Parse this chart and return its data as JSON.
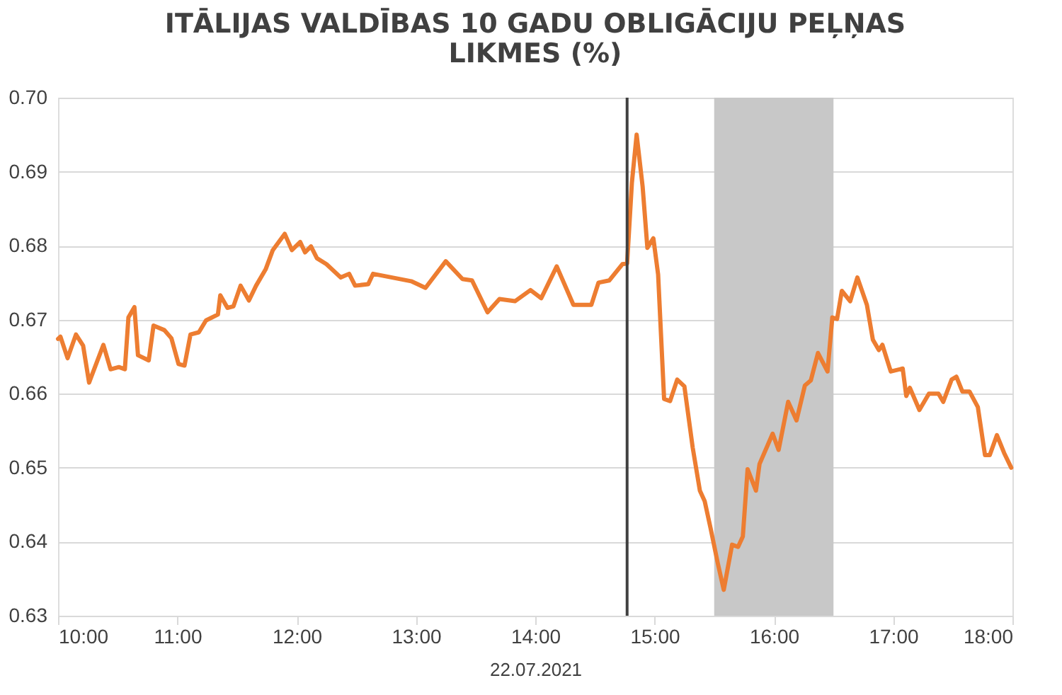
{
  "chart_data": {
    "type": "line",
    "title": [
      "ITĀLIJAS VALDĪBAS 10 GADU OBLIGĀCIJU PEĻŅAS",
      "LIKMES (%)"
    ],
    "xlabel": "22.07.2021",
    "xlim": [
      10,
      18
    ],
    "xticks": [
      {
        "value": 10,
        "label": "10:00"
      },
      {
        "value": 11,
        "label": "11:00"
      },
      {
        "value": 12,
        "label": "12:00"
      },
      {
        "value": 13,
        "label": "13:00"
      },
      {
        "value": 14,
        "label": "14:00"
      },
      {
        "value": 15,
        "label": "15:00"
      },
      {
        "value": 16,
        "label": "16:00"
      },
      {
        "value": 17,
        "label": "17:00"
      },
      {
        "value": 18,
        "label": "18:00"
      }
    ],
    "ylim": [
      0.63,
      0.7
    ],
    "yticks": [
      0.63,
      0.64,
      0.65,
      0.66,
      0.67,
      0.68,
      0.69,
      {
        "value": 0.7,
        "label": "0.70"
      }
    ],
    "grid": "y",
    "marker": "none",
    "line_style": "solid",
    "ref_lines": [
      {
        "axis": "x",
        "value": 14.77,
        "color": "#404040"
      }
    ],
    "bands": [
      {
        "axis": "x",
        "from": 15.5,
        "to": 16.5,
        "color": "#c8c8c8"
      }
    ],
    "series": [
      {
        "color": "#ed7d31",
        "x": [
          10.0,
          10.02,
          10.08,
          10.15,
          10.21,
          10.26,
          10.38,
          10.44,
          10.51,
          10.56,
          10.59,
          10.64,
          10.67,
          10.76,
          10.8,
          10.89,
          10.95,
          11.01,
          11.06,
          11.11,
          11.18,
          11.24,
          11.34,
          11.36,
          11.42,
          11.47,
          11.53,
          11.6,
          11.66,
          11.74,
          11.8,
          11.9,
          11.96,
          12.03,
          12.07,
          12.12,
          12.17,
          12.25,
          12.37,
          12.44,
          12.49,
          12.6,
          12.64,
          12.96,
          13.08,
          13.25,
          13.39,
          13.47,
          13.6,
          13.7,
          13.83,
          13.96,
          14.05,
          14.18,
          14.32,
          14.47,
          14.53,
          14.62,
          14.73,
          14.77,
          14.81,
          14.85,
          14.9,
          14.94,
          14.99,
          15.03,
          15.08,
          15.13,
          15.19,
          15.25,
          15.32,
          15.38,
          15.42,
          15.47,
          15.53,
          15.58,
          15.65,
          15.7,
          15.74,
          15.78,
          15.85,
          15.88,
          15.99,
          16.04,
          16.12,
          16.19,
          16.26,
          16.31,
          16.37,
          16.45,
          16.49,
          16.53,
          16.57,
          16.64,
          16.7,
          16.78,
          16.83,
          16.88,
          16.91,
          16.98,
          17.08,
          17.11,
          17.14,
          17.22,
          17.3,
          17.38,
          17.42,
          17.49,
          17.53,
          17.58,
          17.64,
          17.71,
          17.77,
          17.81,
          17.87,
          17.93,
          17.99
        ],
        "values": [
          0.6674,
          0.6677,
          0.6648,
          0.668,
          0.6665,
          0.6615,
          0.6666,
          0.6633,
          0.6636,
          0.6633,
          0.6703,
          0.6717,
          0.6652,
          0.6645,
          0.6692,
          0.6686,
          0.6675,
          0.664,
          0.6638,
          0.668,
          0.6683,
          0.6699,
          0.6707,
          0.6733,
          0.6716,
          0.6718,
          0.6746,
          0.6726,
          0.6746,
          0.6768,
          0.6794,
          0.6816,
          0.6794,
          0.6805,
          0.6791,
          0.6799,
          0.6783,
          0.6775,
          0.6757,
          0.6762,
          0.6746,
          0.6748,
          0.6762,
          0.6752,
          0.6743,
          0.6779,
          0.6755,
          0.6753,
          0.671,
          0.6728,
          0.6725,
          0.674,
          0.6729,
          0.6772,
          0.672,
          0.672,
          0.675,
          0.6753,
          0.6775,
          0.6776,
          0.6885,
          0.695,
          0.688,
          0.6797,
          0.681,
          0.6761,
          0.6593,
          0.659,
          0.6619,
          0.661,
          0.6527,
          0.6469,
          0.6455,
          0.6418,
          0.6371,
          0.6335,
          0.6396,
          0.6393,
          0.6407,
          0.6498,
          0.6469,
          0.6505,
          0.6546,
          0.6524,
          0.6589,
          0.6564,
          0.6611,
          0.6618,
          0.6655,
          0.663,
          0.6703,
          0.6701,
          0.6739,
          0.6725,
          0.6757,
          0.672,
          0.6673,
          0.6659,
          0.6666,
          0.663,
          0.6634,
          0.6597,
          0.6608,
          0.6578,
          0.66,
          0.66,
          0.6589,
          0.6619,
          0.6623,
          0.6603,
          0.6603,
          0.6582,
          0.6517,
          0.6517,
          0.6544,
          0.652,
          0.65
        ]
      }
    ]
  }
}
